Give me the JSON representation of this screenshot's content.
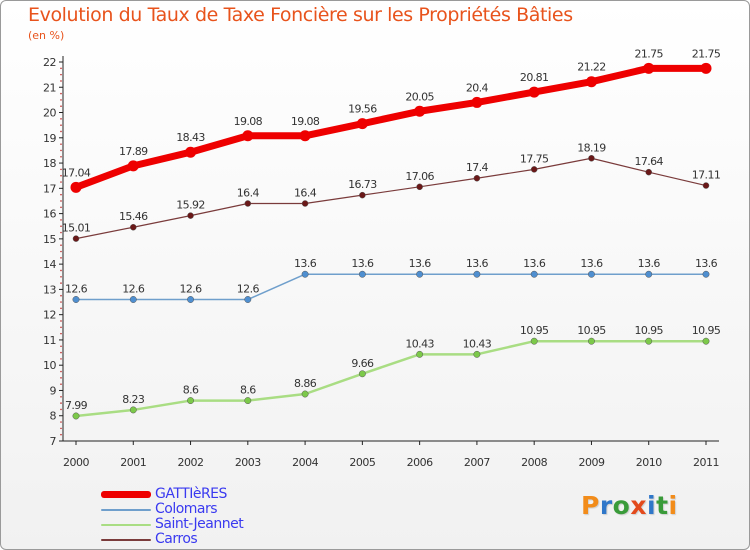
{
  "title": "Evolution du Taux de Taxe Foncière sur les Propriétés Bâties",
  "unit_label": "(en %)",
  "logo": {
    "text": "Proxiti",
    "letter_colors": [
      "#f28c1a",
      "#2f77c9",
      "#3a9b3a",
      "#e34a1c",
      "#2f77c9",
      "#3a9b3a",
      "#f28c1a"
    ]
  },
  "chart_data": {
    "type": "line",
    "x": [
      2000,
      2001,
      2002,
      2003,
      2004,
      2005,
      2006,
      2007,
      2008,
      2009,
      2010,
      2011
    ],
    "ylim": [
      7,
      22
    ],
    "yticks": [
      7,
      8,
      9,
      10,
      11,
      12,
      13,
      14,
      15,
      16,
      17,
      18,
      19,
      20,
      21,
      22
    ],
    "grid": false,
    "legend_position": "bottom-left",
    "series": [
      {
        "name": "GATTIèRES",
        "color": "#ee0000",
        "marker_color": "#ee0000",
        "values": [
          17.04,
          17.89,
          18.43,
          19.08,
          19.08,
          19.56,
          20.05,
          20.4,
          20.81,
          21.22,
          21.75,
          21.75
        ],
        "labels": [
          "17.04",
          "17.89",
          "18.43",
          "19.08",
          "19.08",
          "19.56",
          "20.05",
          "20.4",
          "20.81",
          "21.22",
          "21.75",
          "21.75"
        ]
      },
      {
        "name": "Colomars",
        "color": "#6f9fcc",
        "marker_color": "#4f8fd0",
        "values": [
          12.6,
          12.6,
          12.6,
          12.6,
          13.6,
          13.6,
          13.6,
          13.6,
          13.6,
          13.6,
          13.6,
          13.6
        ],
        "labels": [
          "12.6",
          "12.6",
          "12.6",
          "12.6",
          "13.6",
          "13.6",
          "13.6",
          "13.6",
          "13.6",
          "13.6",
          "13.6",
          "13.6"
        ]
      },
      {
        "name": "Saint-Jeannet",
        "color": "#a9dd83",
        "marker_color": "#7cc94a",
        "values": [
          7.99,
          8.23,
          8.6,
          8.6,
          8.86,
          9.66,
          10.43,
          10.43,
          10.95,
          10.95,
          10.95,
          10.95
        ],
        "labels": [
          "7.99",
          "8.23",
          "8.6",
          "8.6",
          "8.86",
          "9.66",
          "10.43",
          "10.43",
          "10.95",
          "10.95",
          "10.95",
          "10.95"
        ]
      },
      {
        "name": "Carros",
        "color": "#7a3b3b",
        "marker_color": "#6a1818",
        "values": [
          15.01,
          15.46,
          15.92,
          16.4,
          16.4,
          16.73,
          17.06,
          17.4,
          17.75,
          18.19,
          17.64,
          17.11
        ],
        "labels": [
          "15.01",
          "15.46",
          "15.92",
          "16.4",
          "16.4",
          "16.73",
          "17.06",
          "17.4",
          "17.75",
          "18.19",
          "17.64",
          "17.11"
        ]
      }
    ]
  }
}
